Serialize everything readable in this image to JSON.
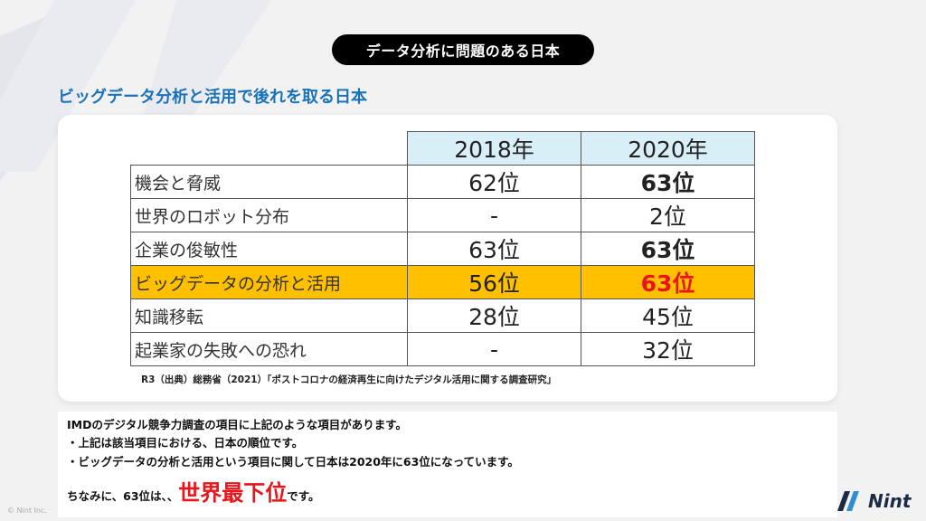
{
  "header": {
    "tag": "データ分析に問題のある日本"
  },
  "subtitle": "ビッグデータ分析と活用で後れを取る日本",
  "table": {
    "columns": [
      "2018年",
      "2020年"
    ],
    "rows": [
      {
        "item": "機会と脅威",
        "y2018": "62位",
        "y2020": "63位"
      },
      {
        "item": "世界のロボット分布",
        "y2018": "-",
        "y2020": "2位"
      },
      {
        "item": "企業の俊敏性",
        "y2018": "63位",
        "y2020": "63位"
      },
      {
        "item": "ビッグデータの分析と活用",
        "y2018": "56位",
        "y2020": "63位"
      },
      {
        "item": "知識移転",
        "y2018": "28位",
        "y2020": "45位"
      },
      {
        "item": "起業家の失敗への恐れ",
        "y2018": "-",
        "y2020": "32位"
      }
    ],
    "highlight_color": "#ffc000",
    "header_color": "#d9eff8",
    "emphasis_color": "#e8151b"
  },
  "source": "R3（出典）総務省（2021）「ポストコロナの経済再生に向けたデジタル活用に関する調査研究」",
  "notes": {
    "line1": "IMDのデジタル競争力調査の項目に上記のような項目があります。",
    "line2": "・上記は該当項目における、日本の順位です。",
    "line3": "・ビッグデータの分析と活用という項目に関して日本は2020年に63位になっています。",
    "line4_prefix": "ちなみに、63位は、、",
    "line4_emphasis": "世界最下位",
    "line4_suffix": "です。"
  },
  "footer": {
    "copyright": "© Nint Inc.",
    "logo": "Nint"
  }
}
